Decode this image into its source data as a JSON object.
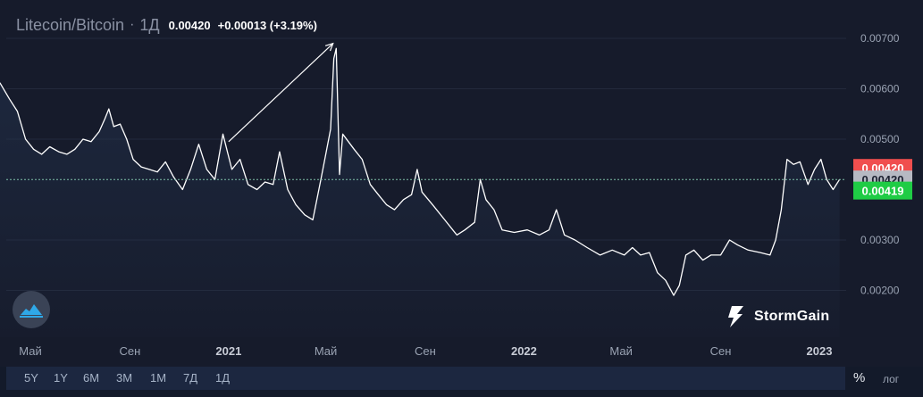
{
  "header": {
    "symbol": "Litecoin/Bitcoin",
    "separator": "·",
    "timeframe": "1Д",
    "price": "0.00420",
    "change": "+0.00013 (+3.19%)"
  },
  "toolbar": {
    "ranges": [
      "5Y",
      "1Y",
      "6M",
      "3M",
      "1M",
      "7Д",
      "1Д"
    ],
    "percent_label": "%",
    "log_label": "лог"
  },
  "brand": {
    "name": "StormGain"
  },
  "colors": {
    "background": "#161b2b",
    "line": "#ffffff",
    "badge_red": "#f04e4e",
    "badge_grey": "#b6b9c3",
    "badge_green": "#1fcc45",
    "dashed": "#7fc0a8"
  },
  "chart_data": {
    "type": "line",
    "title": "Litecoin/Bitcoin",
    "y_ticks": [
      "0.00700",
      "0.00600",
      "0.00500",
      "0.00300",
      "0.00200"
    ],
    "ylim": [
      0.0017,
      0.0072
    ],
    "x_ticks": [
      {
        "label": "Май",
        "date": "2020-05-01"
      },
      {
        "label": "Сен",
        "date": "2020-09-01"
      },
      {
        "label": "2021",
        "date": "2021-01-01"
      },
      {
        "label": "Май",
        "date": "2021-05-01"
      },
      {
        "label": "Сен",
        "date": "2021-09-01"
      },
      {
        "label": "2022",
        "date": "2022-01-01"
      },
      {
        "label": "Май",
        "date": "2022-05-01"
      },
      {
        "label": "Сен",
        "date": "2022-09-01"
      },
      {
        "label": "2023",
        "date": "2023-01-01"
      }
    ],
    "series": [
      {
        "points": [
          [
            "2020-03-15",
            0.0063
          ],
          [
            "2020-03-25",
            0.0061
          ],
          [
            "2020-04-05",
            0.0058
          ],
          [
            "2020-04-15",
            0.00555
          ],
          [
            "2020-04-25",
            0.005
          ],
          [
            "2020-05-05",
            0.0048
          ],
          [
            "2020-05-15",
            0.0047
          ],
          [
            "2020-05-25",
            0.00485
          ],
          [
            "2020-06-05",
            0.00475
          ],
          [
            "2020-06-15",
            0.0047
          ],
          [
            "2020-06-25",
            0.0048
          ],
          [
            "2020-07-05",
            0.005
          ],
          [
            "2020-07-15",
            0.00495
          ],
          [
            "2020-07-25",
            0.00515
          ],
          [
            "2020-08-01",
            0.0054
          ],
          [
            "2020-08-06",
            0.0056
          ],
          [
            "2020-08-12",
            0.00525
          ],
          [
            "2020-08-20",
            0.0053
          ],
          [
            "2020-08-28",
            0.005
          ],
          [
            "2020-09-05",
            0.0046
          ],
          [
            "2020-09-15",
            0.00445
          ],
          [
            "2020-09-25",
            0.0044
          ],
          [
            "2020-10-05",
            0.00435
          ],
          [
            "2020-10-15",
            0.00455
          ],
          [
            "2020-10-25",
            0.00425
          ],
          [
            "2020-11-05",
            0.004
          ],
          [
            "2020-11-15",
            0.0044
          ],
          [
            "2020-11-25",
            0.0049
          ],
          [
            "2020-12-05",
            0.0044
          ],
          [
            "2020-12-15",
            0.0042
          ],
          [
            "2020-12-25",
            0.0051
          ],
          [
            "2021-01-05",
            0.0044
          ],
          [
            "2021-01-15",
            0.0046
          ],
          [
            "2021-01-25",
            0.0041
          ],
          [
            "2021-02-05",
            0.004
          ],
          [
            "2021-02-15",
            0.00415
          ],
          [
            "2021-02-25",
            0.0041
          ],
          [
            "2021-03-05",
            0.00475
          ],
          [
            "2021-03-15",
            0.004
          ],
          [
            "2021-03-25",
            0.0037
          ],
          [
            "2021-04-05",
            0.0035
          ],
          [
            "2021-04-15",
            0.0034
          ],
          [
            "2021-04-25",
            0.0042
          ],
          [
            "2021-05-01",
            0.0047
          ],
          [
            "2021-05-07",
            0.0052
          ],
          [
            "2021-05-11",
            0.0066
          ],
          [
            "2021-05-14",
            0.0068
          ],
          [
            "2021-05-18",
            0.0043
          ],
          [
            "2021-05-22",
            0.0051
          ],
          [
            "2021-06-05",
            0.0048
          ],
          [
            "2021-06-15",
            0.0046
          ],
          [
            "2021-06-25",
            0.0041
          ],
          [
            "2021-07-05",
            0.0039
          ],
          [
            "2021-07-15",
            0.0037
          ],
          [
            "2021-07-25",
            0.0036
          ],
          [
            "2021-08-05",
            0.0038
          ],
          [
            "2021-08-15",
            0.0039
          ],
          [
            "2021-08-22",
            0.0044
          ],
          [
            "2021-08-28",
            0.00395
          ],
          [
            "2021-09-10",
            0.0037
          ],
          [
            "2021-09-25",
            0.0034
          ],
          [
            "2021-10-10",
            0.0031
          ],
          [
            "2021-10-20",
            0.0032
          ],
          [
            "2021-11-01",
            0.00335
          ],
          [
            "2021-11-08",
            0.0042
          ],
          [
            "2021-11-15",
            0.0038
          ],
          [
            "2021-11-25",
            0.0036
          ],
          [
            "2021-12-05",
            0.0032
          ],
          [
            "2021-12-20",
            0.00315
          ],
          [
            "2022-01-05",
            0.0032
          ],
          [
            "2022-01-20",
            0.0031
          ],
          [
            "2022-02-01",
            0.0032
          ],
          [
            "2022-02-10",
            0.0036
          ],
          [
            "2022-02-20",
            0.0031
          ],
          [
            "2022-03-05",
            0.003
          ],
          [
            "2022-03-20",
            0.00285
          ],
          [
            "2022-04-05",
            0.0027
          ],
          [
            "2022-04-20",
            0.0028
          ],
          [
            "2022-05-05",
            0.0027
          ],
          [
            "2022-05-15",
            0.00285
          ],
          [
            "2022-05-25",
            0.0027
          ],
          [
            "2022-06-05",
            0.00275
          ],
          [
            "2022-06-15",
            0.00235
          ],
          [
            "2022-06-25",
            0.0022
          ],
          [
            "2022-07-05",
            0.0019
          ],
          [
            "2022-07-12",
            0.0021
          ],
          [
            "2022-07-20",
            0.0027
          ],
          [
            "2022-07-30",
            0.0028
          ],
          [
            "2022-08-10",
            0.0026
          ],
          [
            "2022-08-20",
            0.0027
          ],
          [
            "2022-09-01",
            0.0027
          ],
          [
            "2022-09-12",
            0.003
          ],
          [
            "2022-09-22",
            0.0029
          ],
          [
            "2022-10-05",
            0.0028
          ],
          [
            "2022-10-20",
            0.00275
          ],
          [
            "2022-11-01",
            0.0027
          ],
          [
            "2022-11-08",
            0.003
          ],
          [
            "2022-11-15",
            0.0036
          ],
          [
            "2022-11-22",
            0.0046
          ],
          [
            "2022-11-30",
            0.0045
          ],
          [
            "2022-12-08",
            0.00455
          ],
          [
            "2022-12-18",
            0.0041
          ],
          [
            "2022-12-26",
            0.0044
          ],
          [
            "2023-01-03",
            0.0046
          ],
          [
            "2023-01-10",
            0.0042
          ],
          [
            "2023-01-18",
            0.004
          ],
          [
            "2023-01-26",
            0.0042
          ]
        ]
      }
    ],
    "annotations": [
      {
        "type": "arrow",
        "from": [
          "2021-01-01",
          0.00495
        ],
        "to": [
          "2021-05-10",
          0.0069
        ]
      }
    ],
    "price_badges": [
      {
        "label": "0.00420",
        "color": "#f04e4e",
        "value": 0.00443
      },
      {
        "label": "0.00420",
        "color": "#b6b9c3",
        "value": 0.0042
      },
      {
        "label": "0.00419",
        "color": "#1fcc45",
        "value": 0.00398
      }
    ],
    "current_value": 0.0042
  }
}
